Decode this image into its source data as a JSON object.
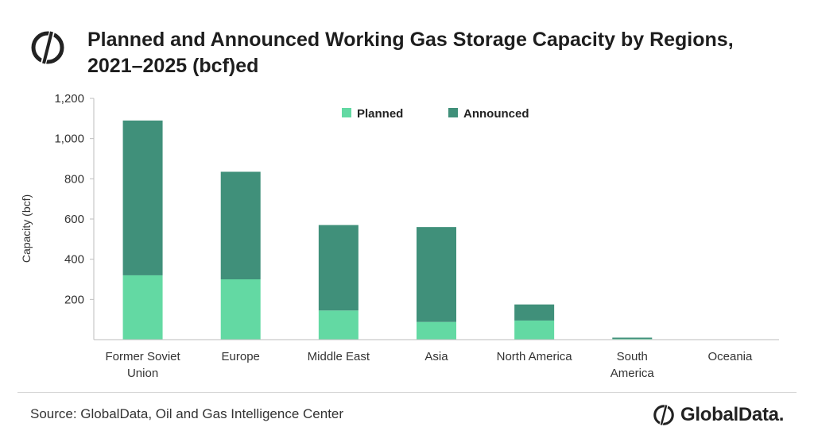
{
  "header": {
    "title_line1": "Planned and Announced Working Gas Storage Capacity by Regions,",
    "title_line2": "2021–2025 (bcf)ed"
  },
  "footer": {
    "source": "Source: GlobalData, Oil and Gas Intelligence Center",
    "brand": "GlobalData."
  },
  "colors": {
    "planned": "#63d9a3",
    "announced": "#40907a",
    "axis": "#bdbdbd"
  },
  "chart_data": {
    "type": "bar",
    "stacked": true,
    "title": "Planned and Announced Working Gas Storage Capacity by Regions, 2021–2025 (bcf)ed",
    "ylabel": "Capacity (bcf)",
    "xlabel": "",
    "ylim": [
      0,
      1200
    ],
    "yticks": [
      200,
      400,
      600,
      800,
      1000,
      1200
    ],
    "ytick_labels": [
      "200",
      "400",
      "600",
      "800",
      "1,000",
      "1,200"
    ],
    "categories": [
      "Former Soviet Union",
      "Europe",
      "Middle East",
      "Asia",
      "North America",
      "South America",
      "Oceania"
    ],
    "category_lines": [
      [
        "Former Soviet",
        "Union"
      ],
      [
        "Europe"
      ],
      [
        "Middle East"
      ],
      [
        "Asia"
      ],
      [
        "North America"
      ],
      [
        "South",
        "America"
      ],
      [
        "Oceania"
      ]
    ],
    "series": [
      {
        "name": "Planned",
        "values": [
          320,
          300,
          145,
          88,
          95,
          4,
          0
        ]
      },
      {
        "name": "Announced",
        "values": [
          770,
          535,
          425,
          472,
          80,
          6,
          0
        ]
      }
    ],
    "legend_position": "top-center",
    "grid": false
  }
}
